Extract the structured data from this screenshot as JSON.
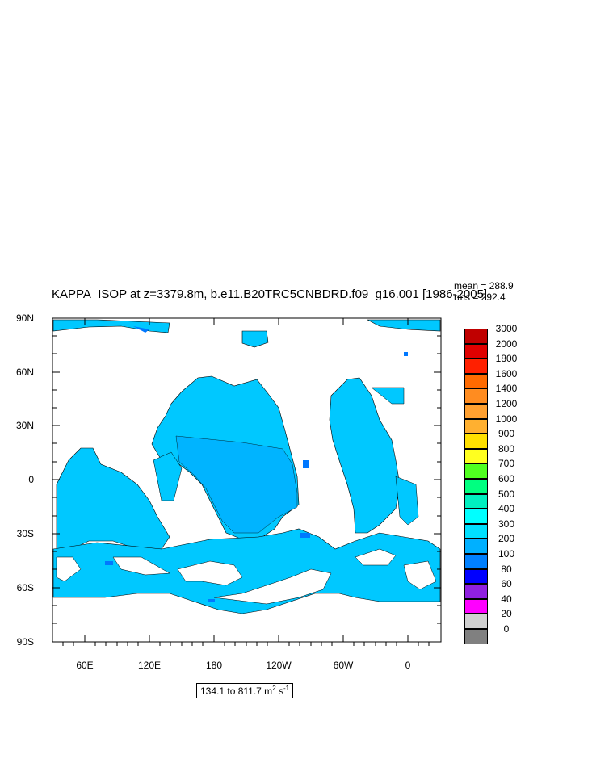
{
  "header": {
    "title": "KAPPA_ISOP at z=3379.8m, b.e11.B20TRC5CNBDRD.f09_g16.001 [1986-2005]",
    "mean": "mean = 288.9",
    "rms": "rms = 292.4"
  },
  "axes": {
    "lat_labels": [
      "90N",
      "60N",
      "30N",
      "0",
      "30S",
      "60S",
      "90S"
    ],
    "lon_labels": [
      "60E",
      "120E",
      "180",
      "120W",
      "60W",
      "0"
    ]
  },
  "range_label": {
    "prefix": "134.1 to 811.7 m",
    "sup1": "2",
    "mid": " s",
    "sup2": "-1"
  },
  "colorbar": {
    "labels": [
      "3000",
      "2000",
      "1800",
      "1600",
      "1400",
      "1200",
      "1000",
      "900",
      "800",
      "700",
      "600",
      "500",
      "400",
      "300",
      "200",
      "100",
      "80",
      "60",
      "40",
      "20",
      "0"
    ],
    "colors": [
      "#c00000",
      "#e00000",
      "#ff2000",
      "#ff6a00",
      "#ff8c20",
      "#ffa030",
      "#ffb030",
      "#ffe000",
      "#ffff20",
      "#50ff20",
      "#00ff80",
      "#00f0c0",
      "#00ffff",
      "#00e0ff",
      "#00b0ff",
      "#0080ff",
      "#0000ff",
      "#9020e0",
      "#ff00ff",
      "#d0d0d0",
      "#808080"
    ]
  },
  "legend_colors": {
    "ocean_main": "#00c8ff",
    "ocean_mid": "#00aaff",
    "ocean_low": "#0078ff",
    "land": "#ffffff"
  }
}
